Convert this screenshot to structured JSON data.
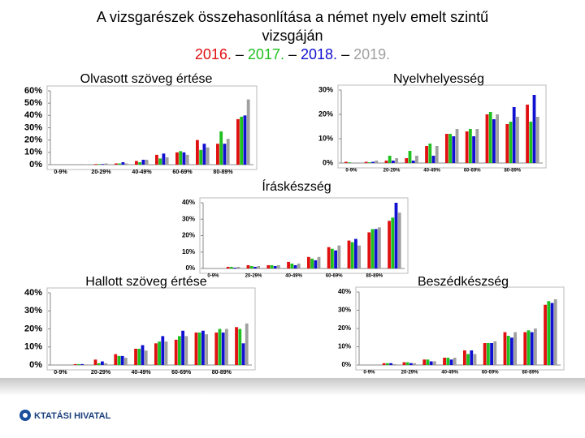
{
  "title": "A vizsgarészek összehasonlítása a német nyelv emelt szintű vizsgáján",
  "separator": "–",
  "legend": [
    {
      "name": "2016.",
      "color": "#e01010"
    },
    {
      "name": "2017.",
      "color": "#20c020"
    },
    {
      "name": "2018.",
      "color": "#1010d0"
    },
    {
      "name": "2019.",
      "color": "#a0a0a0"
    }
  ],
  "footer": "KTATÁSI HIVATAL",
  "chart_data": [
    {
      "type": "bar",
      "title": "Olvasott szöveg értése",
      "categories": [
        "0-9%",
        null,
        "20-29%",
        null,
        "40-49%",
        null,
        "60-69%",
        null,
        "80-89%",
        null
      ],
      "series": [
        {
          "values": [
            0,
            0,
            0.5,
            1,
            3,
            8,
            10,
            20,
            17,
            37
          ]
        },
        {
          "values": [
            0,
            0,
            0.5,
            1,
            2,
            5,
            11,
            12,
            27,
            39
          ]
        },
        {
          "values": [
            0,
            0,
            0.5,
            2,
            4,
            9,
            10,
            17,
            17,
            40
          ]
        },
        {
          "values": [
            0,
            0.3,
            1,
            1,
            4,
            6,
            8,
            14,
            21,
            53
          ]
        }
      ],
      "ylim": [
        0,
        60
      ],
      "yticks": [
        {
          "value": 0,
          "label": "0%"
        },
        {
          "value": 10,
          "label": "10%"
        },
        {
          "value": 20,
          "label": "20%"
        },
        {
          "value": 30,
          "label": "30%"
        },
        {
          "value": 40,
          "label": "40%"
        },
        {
          "value": 50,
          "label": "50%"
        },
        {
          "value": 60,
          "label": "60%"
        }
      ]
    },
    {
      "type": "bar",
      "title": "Nyelvhelyesség",
      "categories": [
        "0-9%",
        null,
        "20-29%",
        null,
        "40-49%",
        null,
        "60-69%",
        null,
        "80-89%",
        null
      ],
      "series": [
        {
          "values": [
            0.5,
            0.5,
            1,
            2,
            7,
            12,
            13,
            20,
            16,
            24
          ]
        },
        {
          "values": [
            0.3,
            0.3,
            3,
            5,
            8,
            12,
            14,
            21,
            17,
            17
          ]
        },
        {
          "values": [
            0,
            0.5,
            1,
            1,
            3,
            11,
            11,
            18,
            23,
            28
          ]
        },
        {
          "values": [
            0,
            1,
            2,
            3,
            7,
            14,
            14,
            20,
            19,
            19
          ]
        }
      ],
      "ylim": [
        0,
        30
      ],
      "yticks": [
        {
          "value": 0,
          "label": "0%"
        },
        {
          "value": 10,
          "label": "10%"
        },
        {
          "value": 20,
          "label": "20%"
        },
        {
          "value": 30,
          "label": "30%"
        }
      ]
    },
    {
      "type": "bar",
      "title": "Íráskészség",
      "categories": [
        "0-9%",
        null,
        "20-29%",
        null,
        "40-49%",
        null,
        "60-69%",
        null,
        "80-89%",
        null
      ],
      "series": [
        {
          "values": [
            0,
            1,
            2,
            2,
            4,
            7,
            13,
            17,
            22,
            29
          ]
        },
        {
          "values": [
            0,
            1,
            1.5,
            2,
            3,
            6,
            12,
            16,
            24,
            31
          ]
        },
        {
          "values": [
            0,
            0.5,
            1,
            1.5,
            2,
            5,
            11,
            18,
            24,
            40
          ]
        },
        {
          "values": [
            0.3,
            1,
            1.5,
            2,
            3,
            7,
            14,
            14,
            25,
            34
          ]
        }
      ],
      "ylim": [
        0,
        40
      ],
      "yticks": [
        {
          "value": 0,
          "label": "0%"
        },
        {
          "value": 10,
          "label": "10%"
        },
        {
          "value": 20,
          "label": "20%"
        },
        {
          "value": 30,
          "label": "30%"
        },
        {
          "value": 40,
          "label": "40%"
        }
      ]
    },
    {
      "type": "bar",
      "title": "Hallott szöveg értése",
      "categories": [
        "0-9%",
        null,
        "20-29%",
        null,
        "40-49%",
        null,
        "60-69%",
        null,
        "80-89%",
        null
      ],
      "series": [
        {
          "values": [
            0,
            0.5,
            3,
            6,
            9,
            12,
            14,
            18,
            18,
            21
          ]
        },
        {
          "values": [
            0,
            0.5,
            1,
            5,
            9,
            13,
            16,
            18,
            20,
            20
          ]
        },
        {
          "values": [
            0,
            0.5,
            2,
            5,
            11,
            16,
            19,
            19,
            18,
            12
          ]
        },
        {
          "values": [
            0,
            0.3,
            1,
            4,
            8,
            13,
            16,
            17,
            20,
            23
          ]
        }
      ],
      "ylim": [
        0,
        40
      ],
      "yticks": [
        {
          "value": 0,
          "label": "0%"
        },
        {
          "value": 10,
          "label": "10%"
        },
        {
          "value": 20,
          "label": "20%"
        },
        {
          "value": 30,
          "label": "30%"
        },
        {
          "value": 40,
          "label": "40%"
        }
      ]
    },
    {
      "type": "bar",
      "title": "Beszédkészség",
      "categories": [
        "0-9%",
        null,
        "20-29%",
        null,
        "40-49%",
        null,
        "60-69%",
        null,
        "80-89%",
        null
      ],
      "series": [
        {
          "values": [
            0,
            1,
            1.5,
            3,
            4,
            8,
            12,
            18,
            18,
            33
          ]
        },
        {
          "values": [
            0,
            1,
            1.5,
            3,
            4,
            6,
            12,
            16,
            19,
            35
          ]
        },
        {
          "values": [
            0,
            1,
            1,
            2,
            3,
            8,
            12,
            15,
            18,
            34
          ]
        },
        {
          "values": [
            0,
            0.5,
            1,
            2,
            4,
            6,
            13,
            18,
            20,
            36
          ]
        }
      ],
      "ylim": [
        0,
        40
      ],
      "yticks": [
        {
          "value": 0,
          "label": "0%"
        },
        {
          "value": 10,
          "label": "10%"
        },
        {
          "value": 20,
          "label": "20%"
        },
        {
          "value": 30,
          "label": "30%"
        },
        {
          "value": 40,
          "label": "40%"
        }
      ]
    }
  ]
}
